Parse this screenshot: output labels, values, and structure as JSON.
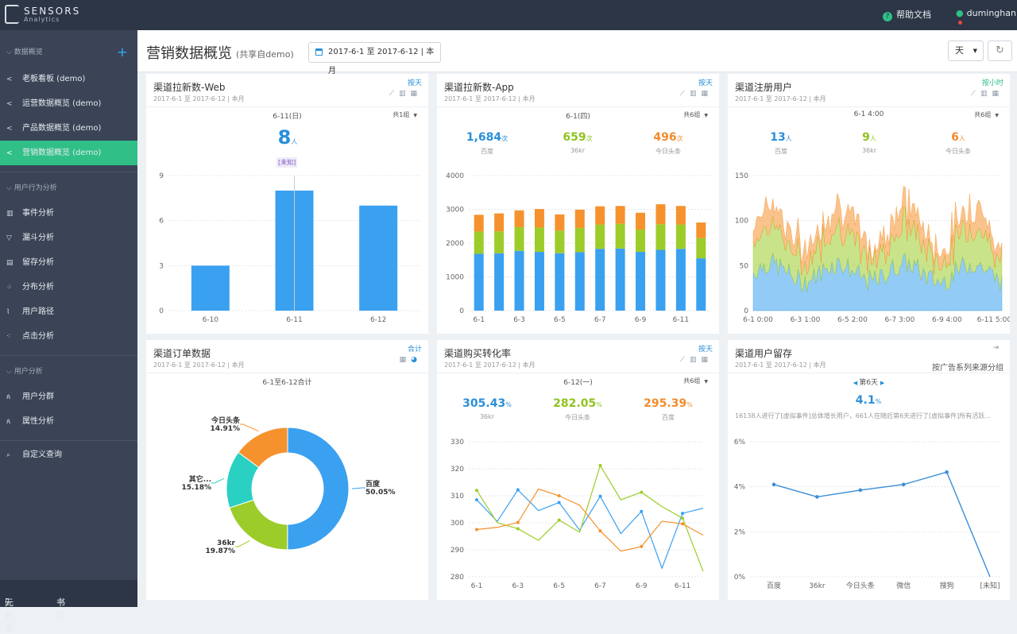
{
  "brand": {
    "name": "SENSORS",
    "tagline": "Analytics"
  },
  "topbar": {
    "help": "帮助文档",
    "user": "duminghan",
    "help_icon": "?",
    "user_icon": "user-icon"
  },
  "sidebar": {
    "section1": "数据概览",
    "dashboards": [
      {
        "label": "老板看板 (demo)",
        "icon": "share-icon"
      },
      {
        "label": "运营数据概览 (demo)",
        "icon": "share-icon"
      },
      {
        "label": "产品数据概览 (demo)",
        "icon": "share-icon"
      },
      {
        "label": "营销数据概览 (demo)",
        "icon": "share-icon",
        "active": true
      }
    ],
    "section2": "用户行为分析",
    "analysis": [
      {
        "label": "事件分析",
        "icon": "bar-chart-icon"
      },
      {
        "label": "漏斗分析",
        "icon": "funnel-icon"
      },
      {
        "label": "留存分析",
        "icon": "retention-icon"
      },
      {
        "label": "分布分析",
        "icon": "distribution-icon"
      },
      {
        "label": "用户路径",
        "icon": "path-icon"
      },
      {
        "label": "点击分析",
        "icon": "click-icon"
      }
    ],
    "section3": "用户分析",
    "users": [
      {
        "label": "用户分群",
        "icon": "group-icon"
      },
      {
        "label": "属性分析",
        "icon": "property-icon"
      }
    ],
    "custom": "自定义查询",
    "footer": {
      "meta": "元数据",
      "bookmark": "书签"
    }
  },
  "header": {
    "title": "营销数据概览",
    "shared": "(共享自demo)",
    "date_range": "2017-6-1 至 2017-6-12 | 本月",
    "granularity": "天"
  },
  "panels": [
    {
      "title": "渠道拉新数-Web",
      "date": "2017-6-1 至 2017-6-12 | 本月",
      "link": "按天",
      "sub": "6-11(日)",
      "group": "共1组",
      "kpi_value": "8",
      "kpi_unit": "人",
      "kpi_label": "[未知]"
    },
    {
      "title": "渠道拉新数-App",
      "date": "2017-6-1 至 2017-6-12 | 本月",
      "link": "按天",
      "sub": "6-1(四)",
      "group": "共6组",
      "kpis": [
        {
          "v": "1,684",
          "u": "次",
          "l": "百度",
          "color": "#2a8fd8"
        },
        {
          "v": "659",
          "u": "次",
          "l": "36kr",
          "color": "#8fc31f"
        },
        {
          "v": "496",
          "u": "次",
          "l": "今日头条",
          "color": "#f08c2e"
        }
      ]
    },
    {
      "title": "渠道注册用户",
      "date": "2017-6-1 至 2017-6-12 | 本月",
      "link": "按小时",
      "sub": "6-1 4:00",
      "group": "共6组",
      "kpis": [
        {
          "v": "13",
          "u": "人",
          "l": "百度",
          "color": "#2a8fd8"
        },
        {
          "v": "9",
          "u": "人",
          "l": "36kr",
          "color": "#8fc31f"
        },
        {
          "v": "6",
          "u": "人",
          "l": "今日头条",
          "color": "#f08c2e"
        }
      ]
    },
    {
      "title": "渠道订单数据",
      "date": "2017-6-1 至 2017-6-12 | 本月",
      "link": "合计",
      "sub": "6-1至6-12合计"
    },
    {
      "title": "渠道购买转化率",
      "date": "2017-6-1 至 2017-6-12 | 本月",
      "link": "按天",
      "sub": "6-12(一)",
      "group": "共6组",
      "kpis": [
        {
          "v": "305.43",
          "u": "%",
          "l": "36kr",
          "color": "#2a8fd8"
        },
        {
          "v": "282.05",
          "u": "%",
          "l": "今日头条",
          "color": "#8fc31f"
        },
        {
          "v": "295.39",
          "u": "%",
          "l": "百度",
          "color": "#f08c2e"
        }
      ]
    },
    {
      "title": "渠道用户留存",
      "date": "2017-6-1 至 2017-6-12 | 本月",
      "link": "按广告系列来源分组",
      "sub": "第6天",
      "kpi_value": "4.1",
      "kpi_unit": "%",
      "note": "16138人进行了[虚拟事件]总体增长用户，661人在随后第6天进行了[虚拟事件]所有活跃..."
    }
  ],
  "colors": {
    "blue": "#3aa0f0",
    "green": "#9ccc2a",
    "orange": "#f5922e",
    "teal": "#2ad0c2",
    "accent": "#2fbf87"
  },
  "chart_data": [
    {
      "type": "bar",
      "title": "渠道拉新数-Web",
      "categories": [
        "6-10",
        "6-11",
        "6-12"
      ],
      "values": [
        3,
        8,
        7
      ],
      "ylim": [
        0,
        9
      ],
      "yticks": [
        0,
        3,
        6,
        9
      ]
    },
    {
      "type": "bar",
      "title": "渠道拉新数-App",
      "stacked": true,
      "x_ticks": [
        "6-1",
        "6-3",
        "6-5",
        "6-7",
        "6-9",
        "6-11"
      ],
      "ylim": [
        0,
        4000
      ],
      "yticks": [
        0,
        1000,
        2000,
        3000,
        4000
      ],
      "series": [
        {
          "name": "百度",
          "values": [
            1684,
            1700,
            1770,
            1740,
            1700,
            1730,
            1830,
            1840,
            1740,
            1800,
            1830,
            1550
          ]
        },
        {
          "name": "36kr",
          "values": [
            659,
            650,
            700,
            720,
            670,
            720,
            720,
            730,
            660,
            760,
            720,
            600
          ]
        },
        {
          "name": "今日头条",
          "values": [
            496,
            530,
            500,
            550,
            480,
            540,
            540,
            530,
            500,
            590,
            550,
            460
          ]
        }
      ]
    },
    {
      "type": "area",
      "title": "渠道注册用户",
      "x_ticks": [
        "6-1 0:00",
        "6-3 1:00",
        "6-5 2:00",
        "6-7 3:00",
        "6-9 4:00",
        "6-11 5:00"
      ],
      "ylim": [
        0,
        150
      ],
      "yticks": [
        0,
        50,
        100,
        150
      ],
      "series": [
        {
          "name": "百度"
        },
        {
          "name": "36kr"
        },
        {
          "name": "今日头条"
        }
      ]
    },
    {
      "type": "pie",
      "title": "渠道订单数据",
      "slices": [
        {
          "label": "百度",
          "value": 50.05,
          "pct": "50.05%"
        },
        {
          "label": "36kr",
          "value": 19.87,
          "pct": "19.87%"
        },
        {
          "label": "其它...",
          "value": 15.18,
          "pct": "15.18%"
        },
        {
          "label": "今日头条",
          "value": 14.91,
          "pct": "14.91%"
        }
      ]
    },
    {
      "type": "line",
      "title": "渠道购买转化率",
      "categories": [
        "6-1",
        "6-2",
        "6-3",
        "6-4",
        "6-5",
        "6-6",
        "6-7",
        "6-8",
        "6-9",
        "6-10",
        "6-11",
        "6-12"
      ],
      "x_ticks": [
        "6-1",
        "6-3",
        "6-5",
        "6-7",
        "6-9",
        "6-11"
      ],
      "ylim": [
        280,
        330
      ],
      "yticks": [
        280,
        290,
        300,
        310,
        320,
        330
      ],
      "series": [
        {
          "name": "36kr",
          "values": [
            308.5,
            300.5,
            312.2,
            304.5,
            307.5,
            297.3,
            309.8,
            296,
            304.2,
            283.2,
            303.5,
            305.4
          ]
        },
        {
          "name": "今日头条",
          "values": [
            312,
            300,
            297.8,
            293.5,
            301,
            296.5,
            321.2,
            308.5,
            311.3,
            306,
            301.7,
            282
          ]
        },
        {
          "name": "百度",
          "values": [
            297.5,
            298.3,
            300.1,
            312.5,
            310,
            306.5,
            297,
            289.5,
            291.2,
            300.6,
            299.6,
            295.4
          ]
        }
      ]
    },
    {
      "type": "line",
      "title": "渠道用户留存",
      "categories": [
        "百度",
        "36kr",
        "今日头条",
        "微信",
        "搜狗",
        "[未知]"
      ],
      "ylim": [
        0,
        6
      ],
      "yticks": [
        "0%",
        "2%",
        "4%",
        "6%"
      ],
      "series": [
        {
          "name": "第6天",
          "values": [
            4.1,
            3.55,
            3.85,
            4.1,
            4.65,
            0
          ]
        }
      ]
    }
  ]
}
